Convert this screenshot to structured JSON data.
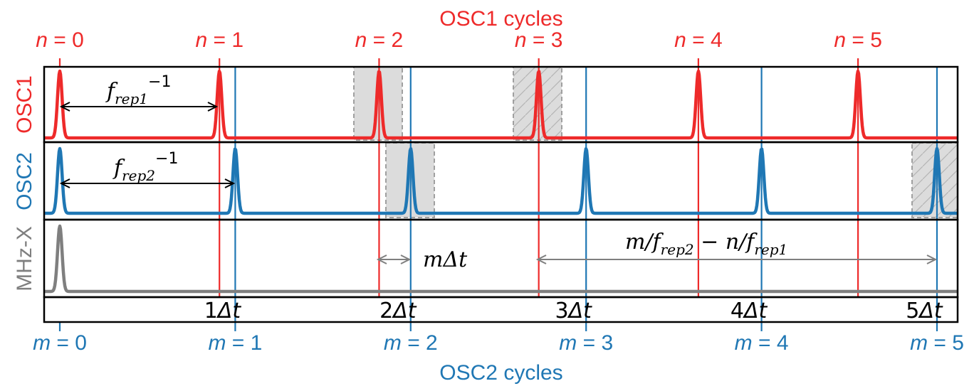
{
  "colors": {
    "osc1": "#ee2a2a",
    "osc2": "#1f77b4",
    "xcorr": "#7f7f7f",
    "shade": "#dcdcdc",
    "shade_edge": "#a0a0a0",
    "frame": "#000000"
  },
  "titles": {
    "top": "OSC1 cycles",
    "bottom": "OSC2 cycles"
  },
  "row_labels": {
    "osc1": "OSC1",
    "osc2": "OSC2",
    "xcorr": "MHz-X"
  },
  "n_ticks": [
    {
      "var": "n",
      "eq": " = ",
      "val": "0"
    },
    {
      "var": "n",
      "eq": " = ",
      "val": "1"
    },
    {
      "var": "n",
      "eq": " = ",
      "val": "2"
    },
    {
      "var": "n",
      "eq": " = ",
      "val": "3"
    },
    {
      "var": "n",
      "eq": " = ",
      "val": "4"
    },
    {
      "var": "n",
      "eq": " = ",
      "val": "5"
    }
  ],
  "m_ticks": [
    {
      "var": "m",
      "eq": " = ",
      "val": "0"
    },
    {
      "var": "m",
      "eq": " = ",
      "val": "1"
    },
    {
      "var": "m",
      "eq": " = ",
      "val": "2"
    },
    {
      "var": "m",
      "eq": " = ",
      "val": "3"
    },
    {
      "var": "m",
      "eq": " = ",
      "val": "4"
    },
    {
      "var": "m",
      "eq": " = ",
      "val": "5"
    }
  ],
  "delta_labels": [
    "1",
    "2",
    "3",
    "4",
    "5"
  ],
  "delta_symbol": "Δt",
  "annotations": {
    "frep1": {
      "base": "f",
      "sub": "rep1",
      "sup": "−1"
    },
    "frep2": {
      "base": "f",
      "sub": "rep2",
      "sup": "−1"
    },
    "m_delta": {
      "pre": "m",
      "post": "Δt"
    },
    "long_delay": {
      "a": "m/f",
      "a_sub": "rep2",
      "mid": " − n/f",
      "b_sub": "rep1"
    }
  },
  "pulse_period": {
    "osc1_rel": 0.91,
    "osc2_rel": 1.0
  }
}
